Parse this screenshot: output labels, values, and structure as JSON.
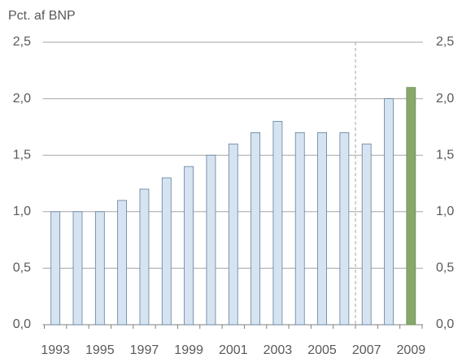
{
  "chart_data": {
    "type": "bar",
    "y_axis_label": "Pct. af BNP",
    "categories": [
      "1993",
      null,
      "1995",
      null,
      "1997",
      null,
      "1999",
      null,
      "2001",
      null,
      "2003",
      null,
      "2005",
      null,
      "2007",
      null,
      "2009"
    ],
    "values": [
      1.0,
      1.0,
      1.0,
      1.1,
      1.2,
      1.3,
      1.4,
      1.5,
      1.6,
      1.7,
      1.8,
      1.7,
      1.7,
      1.7,
      1.6,
      2.0,
      2.1
    ],
    "colors": [
      "#d5e4f0",
      "#d5e4f0",
      "#d5e4f0",
      "#d5e4f0",
      "#d5e4f0",
      "#d5e4f0",
      "#d5e4f0",
      "#d5e4f0",
      "#d5e4f0",
      "#d5e4f0",
      "#d5e4f0",
      "#d5e4f0",
      "#d5e4f0",
      "#d5e4f0",
      "#d5e4f0",
      "#d5e4f0",
      "#86a86a"
    ],
    "ylim": [
      0,
      2.5
    ],
    "yticks": [
      {
        "value": 0,
        "label": "0,0"
      },
      {
        "value": 0.5,
        "label": "0,5"
      },
      {
        "value": 1.0,
        "label": "1,0"
      },
      {
        "value": 1.5,
        "label": "1,5"
      },
      {
        "value": 2.0,
        "label": "2,0"
      },
      {
        "value": 2.5,
        "label": "2,5"
      }
    ],
    "y2lim": [
      0,
      2.5
    ],
    "y2ticks": [
      {
        "value": 0,
        "label": "0,0"
      },
      {
        "value": 0.5,
        "label": "0,5"
      },
      {
        "value": 1.0,
        "label": "1,0"
      },
      {
        "value": 1.5,
        "label": "1,5"
      },
      {
        "value": 2.0,
        "label": "2,0"
      },
      {
        "value": 2.5,
        "label": "2,5"
      }
    ],
    "grid": true
  }
}
